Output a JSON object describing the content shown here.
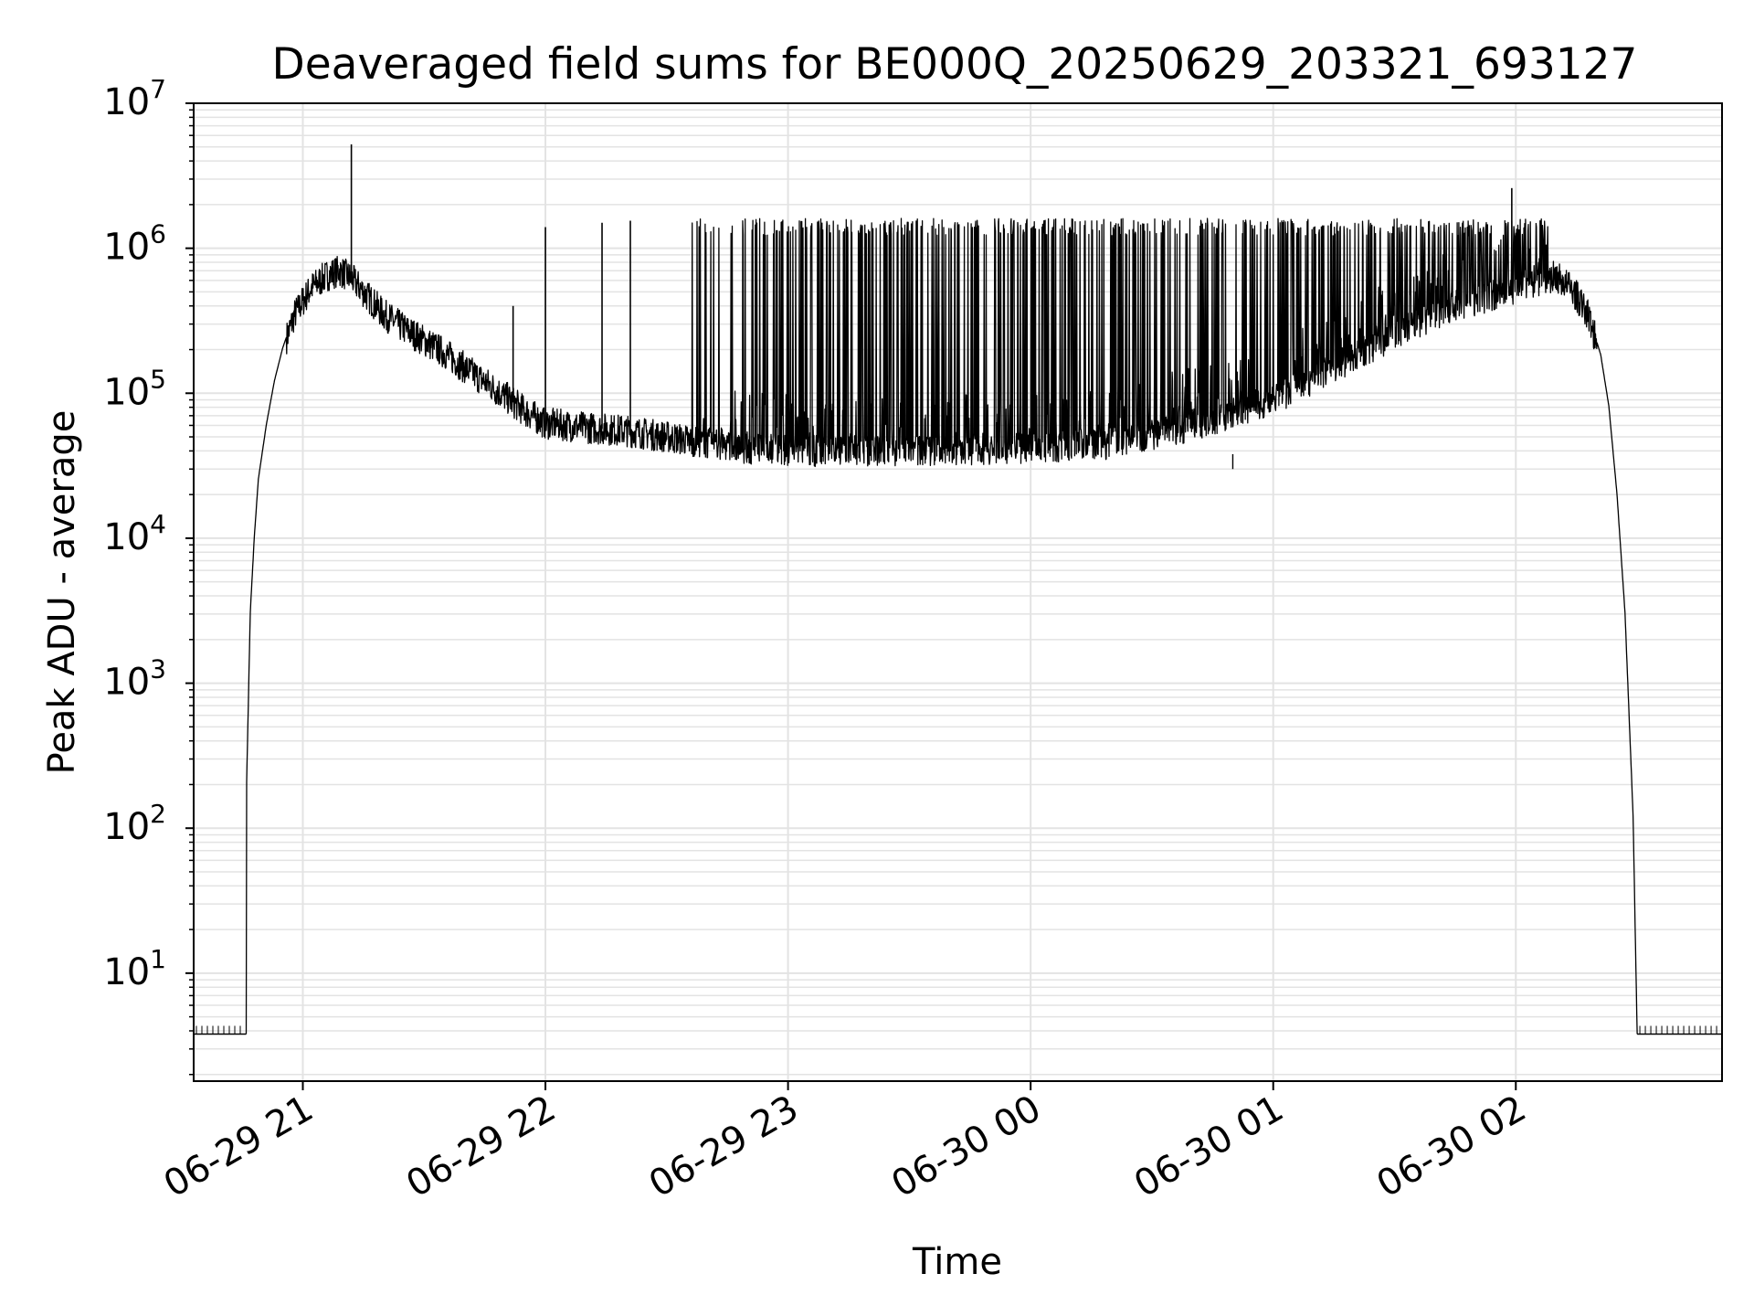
{
  "chart_data": {
    "type": "line",
    "title": "Deaveraged field sums for BE000Q_20250629_203321_693127",
    "xlabel": "Time",
    "ylabel": "Peak ADU - average",
    "yscale": "log",
    "ylim": [
      1.8,
      10000000
    ],
    "xlim": [
      "2025-06-29 20:33",
      "2025-06-30 02:51"
    ],
    "grid": true,
    "colors": {
      "line": "#000000",
      "grid": "#e3e3e3",
      "axes": "#000000"
    },
    "x_ticks": [
      {
        "label": "06-29 21",
        "time": "2025-06-29 21:00"
      },
      {
        "label": "06-29 22",
        "time": "2025-06-29 22:00"
      },
      {
        "label": "06-29 23",
        "time": "2025-06-29 23:00"
      },
      {
        "label": "06-30 00",
        "time": "2025-06-30 00:00"
      },
      {
        "label": "06-30 01",
        "time": "2025-06-30 01:00"
      },
      {
        "label": "06-30 02",
        "time": "2025-06-30 02:00"
      }
    ],
    "y_ticks": [
      {
        "base": "10",
        "exp": "1",
        "value": 10
      },
      {
        "base": "10",
        "exp": "2",
        "value": 100
      },
      {
        "base": "10",
        "exp": "3",
        "value": 1000
      },
      {
        "base": "10",
        "exp": "4",
        "value": 10000
      },
      {
        "base": "10",
        "exp": "5",
        "value": 100000
      },
      {
        "base": "10",
        "exp": "6",
        "value": 1000000
      },
      {
        "base": "10",
        "exp": "7",
        "value": 10000000
      }
    ],
    "series": [
      {
        "baseline_points": [
          [
            "2025-06-29 20:33",
            3.8
          ],
          [
            "2025-06-29 20:46",
            3.8
          ]
        ],
        "envelope_points": [
          [
            "2025-06-29 20:46",
            3.8
          ],
          [
            "2025-06-29 20:46",
            150
          ],
          [
            "2025-06-29 20:47",
            3000
          ],
          [
            "2025-06-29 20:48",
            10000
          ],
          [
            "2025-06-29 20:49",
            25000
          ],
          [
            "2025-06-29 20:51",
            60000
          ],
          [
            "2025-06-29 20:53",
            120000
          ],
          [
            "2025-06-29 20:55",
            200000
          ],
          [
            "2025-06-29 20:58",
            350000
          ],
          [
            "2025-06-29 21:02",
            530000
          ],
          [
            "2025-06-29 21:06",
            650000
          ],
          [
            "2025-06-29 21:09",
            700000
          ],
          [
            "2025-06-29 21:12",
            620000
          ],
          [
            "2025-06-29 21:15",
            500000
          ],
          [
            "2025-06-29 21:20",
            350000
          ],
          [
            "2025-06-29 21:25",
            280000
          ],
          [
            "2025-06-29 21:30",
            230000
          ],
          [
            "2025-06-29 21:35",
            190000
          ],
          [
            "2025-06-29 21:40",
            150000
          ],
          [
            "2025-06-29 21:45",
            120000
          ],
          [
            "2025-06-29 21:50",
            95000
          ],
          [
            "2025-06-29 21:55",
            75000
          ],
          [
            "2025-06-29 22:00",
            62000
          ],
          [
            "2025-06-29 22:10",
            58000
          ],
          [
            "2025-06-29 22:20",
            55000
          ],
          [
            "2025-06-29 22:30",
            50000
          ],
          [
            "2025-06-29 22:40",
            45000
          ],
          [
            "2025-06-29 22:50",
            42000
          ],
          [
            "2025-06-29 23:00",
            40000
          ],
          [
            "2025-06-29 23:20",
            40000
          ],
          [
            "2025-06-29 23:40",
            41000
          ],
          [
            "2025-06-30 00:00",
            42000
          ],
          [
            "2025-06-30 00:20",
            45000
          ],
          [
            "2025-06-30 00:40",
            60000
          ],
          [
            "2025-06-30 01:00",
            90000
          ],
          [
            "2025-06-30 01:15",
            150000
          ],
          [
            "2025-06-30 01:30",
            250000
          ],
          [
            "2025-06-30 01:45",
            400000
          ],
          [
            "2025-06-30 01:55",
            480000
          ],
          [
            "2025-06-30 02:05",
            600000
          ],
          [
            "2025-06-30 02:10",
            640000
          ],
          [
            "2025-06-30 02:14",
            520000
          ],
          [
            "2025-06-30 02:18",
            340000
          ],
          [
            "2025-06-30 02:21",
            180000
          ],
          [
            "2025-06-30 02:23",
            80000
          ],
          [
            "2025-06-30 02:25",
            20000
          ],
          [
            "2025-06-30 02:27",
            3000
          ],
          [
            "2025-06-30 02:29",
            120
          ],
          [
            "2025-06-30 02:30",
            3.8
          ]
        ],
        "trailing_points": [
          [
            "2025-06-30 02:30",
            3.8
          ],
          [
            "2025-06-30 02:51",
            3.8
          ]
        ],
        "spike_points": [
          [
            "2025-06-29 21:12",
            5200000
          ],
          [
            "2025-06-29 21:52",
            400000
          ],
          [
            "2025-06-29 22:00",
            1400000
          ],
          [
            "2025-06-29 22:14",
            1500000
          ],
          [
            "2025-06-29 22:21",
            1550000
          ],
          [
            "2025-06-30 01:59",
            2600000
          ]
        ],
        "burst_region": {
          "start": "2025-06-29 22:35",
          "end": "2025-06-30 02:08",
          "upper": 1400000,
          "lower": 38000,
          "min": 30000,
          "min_time": "2025-06-30 00:50"
        }
      }
    ]
  }
}
